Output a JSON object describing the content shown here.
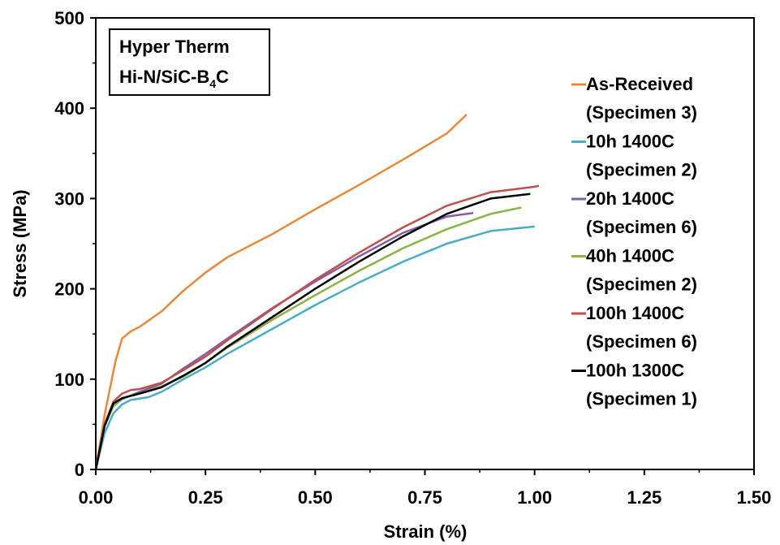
{
  "chart_data": {
    "type": "line",
    "title_box": {
      "line1": "Hyper Therm",
      "line2_prefix": "Hi-N/SiC-B",
      "line2_sub": "4",
      "line2_suffix": "C"
    },
    "xlabel": "Strain (%)",
    "ylabel": "Stress (MPa)",
    "xlim": [
      0,
      1.5
    ],
    "ylim": [
      0,
      500
    ],
    "xticks": [
      "0.00",
      "0.25",
      "0.50",
      "0.75",
      "1.00",
      "1.25",
      "1.50"
    ],
    "xtick_values": [
      0,
      0.25,
      0.5,
      0.75,
      1.0,
      1.25,
      1.5
    ],
    "yticks": [
      "0",
      "100",
      "200",
      "300",
      "400",
      "500"
    ],
    "ytick_values": [
      0,
      100,
      200,
      300,
      400,
      500
    ],
    "grid": false,
    "legend_position": "right",
    "series": [
      {
        "name": "As-Received",
        "name2": "(Specimen 3)",
        "color": "#E8893A",
        "points": [
          [
            0,
            0
          ],
          [
            0.02,
            60
          ],
          [
            0.045,
            120
          ],
          [
            0.06,
            145
          ],
          [
            0.08,
            153
          ],
          [
            0.1,
            158
          ],
          [
            0.15,
            175
          ],
          [
            0.2,
            198
          ],
          [
            0.25,
            218
          ],
          [
            0.3,
            235
          ],
          [
            0.4,
            260
          ],
          [
            0.5,
            288
          ],
          [
            0.6,
            315
          ],
          [
            0.7,
            343
          ],
          [
            0.8,
            372
          ],
          [
            0.845,
            393
          ]
        ]
      },
      {
        "name": "10h 1400C",
        "name2": "(Specimen 2)",
        "color": "#4BACC6",
        "points": [
          [
            0,
            0
          ],
          [
            0.02,
            40
          ],
          [
            0.04,
            62
          ],
          [
            0.06,
            72
          ],
          [
            0.08,
            77
          ],
          [
            0.12,
            80
          ],
          [
            0.15,
            86
          ],
          [
            0.2,
            100
          ],
          [
            0.25,
            113
          ],
          [
            0.3,
            128
          ],
          [
            0.4,
            155
          ],
          [
            0.5,
            182
          ],
          [
            0.6,
            207
          ],
          [
            0.7,
            230
          ],
          [
            0.8,
            250
          ],
          [
            0.9,
            264
          ],
          [
            1.0,
            269
          ]
        ]
      },
      {
        "name": "20h 1400C",
        "name2": "(Specimen 6)",
        "color": "#7F5FA6",
        "points": [
          [
            0,
            0
          ],
          [
            0.02,
            48
          ],
          [
            0.04,
            70
          ],
          [
            0.06,
            78
          ],
          [
            0.1,
            86
          ],
          [
            0.15,
            95
          ],
          [
            0.2,
            112
          ],
          [
            0.25,
            128
          ],
          [
            0.3,
            145
          ],
          [
            0.4,
            178
          ],
          [
            0.5,
            208
          ],
          [
            0.6,
            236
          ],
          [
            0.7,
            262
          ],
          [
            0.8,
            280
          ],
          [
            0.86,
            284
          ]
        ]
      },
      {
        "name": "40h 1400C",
        "name2": "(Specimen 2)",
        "color": "#8DB246",
        "points": [
          [
            0,
            0
          ],
          [
            0.02,
            48
          ],
          [
            0.04,
            70
          ],
          [
            0.06,
            79
          ],
          [
            0.1,
            84
          ],
          [
            0.15,
            92
          ],
          [
            0.2,
            103
          ],
          [
            0.25,
            118
          ],
          [
            0.3,
            135
          ],
          [
            0.4,
            165
          ],
          [
            0.5,
            193
          ],
          [
            0.6,
            220
          ],
          [
            0.7,
            245
          ],
          [
            0.8,
            266
          ],
          [
            0.9,
            283
          ],
          [
            0.97,
            290
          ]
        ]
      },
      {
        "name": "100h 1400C",
        "name2": "(Specimen 6)",
        "color": "#C0504D",
        "points": [
          [
            0,
            0
          ],
          [
            0.02,
            50
          ],
          [
            0.04,
            75
          ],
          [
            0.06,
            84
          ],
          [
            0.08,
            88
          ],
          [
            0.1,
            89
          ],
          [
            0.15,
            96
          ],
          [
            0.2,
            110
          ],
          [
            0.25,
            125
          ],
          [
            0.3,
            143
          ],
          [
            0.4,
            177
          ],
          [
            0.5,
            210
          ],
          [
            0.6,
            240
          ],
          [
            0.7,
            268
          ],
          [
            0.8,
            292
          ],
          [
            0.9,
            307
          ],
          [
            1.0,
            313
          ],
          [
            1.01,
            314
          ]
        ]
      },
      {
        "name": "100h 1300C",
        "name2": "(Specimen 1)",
        "color": "#000000",
        "points": [
          [
            0,
            0
          ],
          [
            0.02,
            48
          ],
          [
            0.04,
            73
          ],
          [
            0.06,
            79
          ],
          [
            0.1,
            84
          ],
          [
            0.15,
            91
          ],
          [
            0.2,
            104
          ],
          [
            0.25,
            118
          ],
          [
            0.3,
            136
          ],
          [
            0.4,
            168
          ],
          [
            0.5,
            200
          ],
          [
            0.6,
            230
          ],
          [
            0.7,
            258
          ],
          [
            0.8,
            283
          ],
          [
            0.9,
            300
          ],
          [
            0.99,
            305
          ]
        ]
      }
    ]
  }
}
